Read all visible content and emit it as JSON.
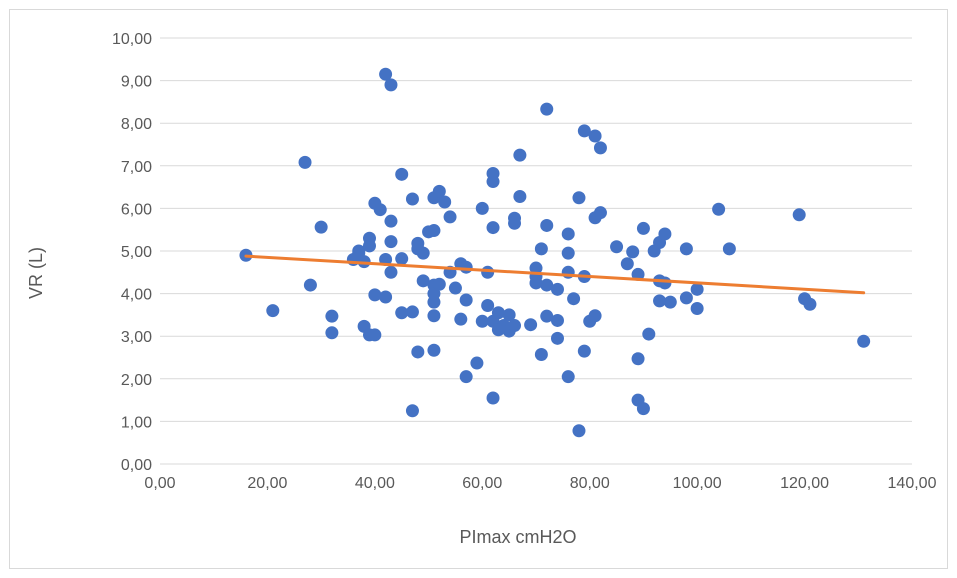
{
  "chart_data": {
    "type": "scatter",
    "xlabel": "PImax cmH2O",
    "ylabel": "VR (L)",
    "xlim": [
      0,
      140
    ],
    "ylim": [
      0,
      10
    ],
    "x_ticks": [
      "0,00",
      "20,00",
      "40,00",
      "60,00",
      "80,00",
      "100,00",
      "120,00",
      "140,00"
    ],
    "y_ticks": [
      "0,00",
      "1,00",
      "2,00",
      "3,00",
      "4,00",
      "5,00",
      "6,00",
      "7,00",
      "8,00",
      "9,00",
      "10,00"
    ],
    "grid": "horizontal",
    "legend": "none",
    "colors": {
      "points": "#4472c4",
      "trendline": "#ed7d31",
      "grid": "#d9d9d9"
    },
    "trendline": {
      "type": "linear",
      "x": [
        16,
        131
      ],
      "y": [
        4.88,
        4.02
      ]
    },
    "points": [
      [
        16,
        4.9
      ],
      [
        21,
        3.6
      ],
      [
        27,
        7.08
      ],
      [
        28,
        4.2
      ],
      [
        30,
        5.56
      ],
      [
        32,
        3.47
      ],
      [
        32,
        3.08
      ],
      [
        36,
        4.8
      ],
      [
        37,
        5.0
      ],
      [
        37,
        4.95
      ],
      [
        38,
        4.75
      ],
      [
        38,
        3.23
      ],
      [
        39,
        5.3
      ],
      [
        39,
        5.12
      ],
      [
        39,
        3.03
      ],
      [
        40,
        6.12
      ],
      [
        40,
        3.97
      ],
      [
        40,
        3.03
      ],
      [
        41,
        5.97
      ],
      [
        42,
        9.15
      ],
      [
        42,
        4.8
      ],
      [
        42,
        3.92
      ],
      [
        43,
        8.9
      ],
      [
        43,
        5.7
      ],
      [
        43,
        5.22
      ],
      [
        43,
        4.5
      ],
      [
        45,
        6.8
      ],
      [
        45,
        4.82
      ],
      [
        45,
        3.55
      ],
      [
        47,
        6.22
      ],
      [
        47,
        3.57
      ],
      [
        47,
        1.25
      ],
      [
        48,
        5.18
      ],
      [
        48,
        5.05
      ],
      [
        48,
        2.63
      ],
      [
        49,
        4.3
      ],
      [
        49,
        4.95
      ],
      [
        50,
        5.45
      ],
      [
        51,
        6.25
      ],
      [
        51,
        5.48
      ],
      [
        51,
        4.2
      ],
      [
        51,
        4.0
      ],
      [
        51,
        3.8
      ],
      [
        51,
        3.48
      ],
      [
        51,
        2.67
      ],
      [
        52,
        6.4
      ],
      [
        52,
        4.22
      ],
      [
        53,
        6.15
      ],
      [
        54,
        5.8
      ],
      [
        54,
        4.5
      ],
      [
        55,
        4.13
      ],
      [
        56,
        4.7
      ],
      [
        56,
        3.4
      ],
      [
        57,
        4.62
      ],
      [
        57,
        3.85
      ],
      [
        57,
        2.05
      ],
      [
        59,
        2.37
      ],
      [
        60,
        6.0
      ],
      [
        60,
        3.35
      ],
      [
        61,
        4.5
      ],
      [
        61,
        3.72
      ],
      [
        62,
        6.82
      ],
      [
        62,
        6.63
      ],
      [
        62,
        5.55
      ],
      [
        62,
        3.35
      ],
      [
        62,
        1.55
      ],
      [
        63,
        3.15
      ],
      [
        63,
        3.55
      ],
      [
        64,
        3.25
      ],
      [
        65,
        3.5
      ],
      [
        65,
        3.12
      ],
      [
        66,
        5.77
      ],
      [
        66,
        5.65
      ],
      [
        66,
        3.25
      ],
      [
        67,
        7.25
      ],
      [
        67,
        6.28
      ],
      [
        69,
        3.27
      ],
      [
        70,
        4.6
      ],
      [
        70,
        4.4
      ],
      [
        70,
        4.25
      ],
      [
        71,
        5.05
      ],
      [
        71,
        2.57
      ],
      [
        72,
        8.33
      ],
      [
        72,
        5.6
      ],
      [
        72,
        4.2
      ],
      [
        72,
        3.47
      ],
      [
        74,
        4.1
      ],
      [
        74,
        3.37
      ],
      [
        74,
        2.95
      ],
      [
        76,
        5.4
      ],
      [
        76,
        4.95
      ],
      [
        76,
        4.5
      ],
      [
        76,
        2.05
      ],
      [
        77,
        3.88
      ],
      [
        78,
        6.25
      ],
      [
        78,
        0.78
      ],
      [
        79,
        7.82
      ],
      [
        79,
        4.4
      ],
      [
        79,
        2.65
      ],
      [
        80,
        3.35
      ],
      [
        81,
        7.7
      ],
      [
        81,
        5.78
      ],
      [
        81,
        3.48
      ],
      [
        82,
        7.42
      ],
      [
        82,
        5.9
      ],
      [
        85,
        5.1
      ],
      [
        87,
        4.7
      ],
      [
        88,
        4.98
      ],
      [
        89,
        4.45
      ],
      [
        89,
        2.47
      ],
      [
        89,
        1.5
      ],
      [
        90,
        5.53
      ],
      [
        90,
        1.3
      ],
      [
        91,
        3.05
      ],
      [
        92,
        5.0
      ],
      [
        93,
        5.2
      ],
      [
        93,
        4.3
      ],
      [
        93,
        3.83
      ],
      [
        94,
        5.4
      ],
      [
        94,
        4.25
      ],
      [
        95,
        3.8
      ],
      [
        98,
        5.05
      ],
      [
        98,
        3.9
      ],
      [
        100,
        4.1
      ],
      [
        100,
        3.65
      ],
      [
        104,
        5.98
      ],
      [
        106,
        5.05
      ],
      [
        119,
        5.85
      ],
      [
        120,
        3.88
      ],
      [
        121,
        3.75
      ],
      [
        131,
        2.88
      ]
    ]
  }
}
